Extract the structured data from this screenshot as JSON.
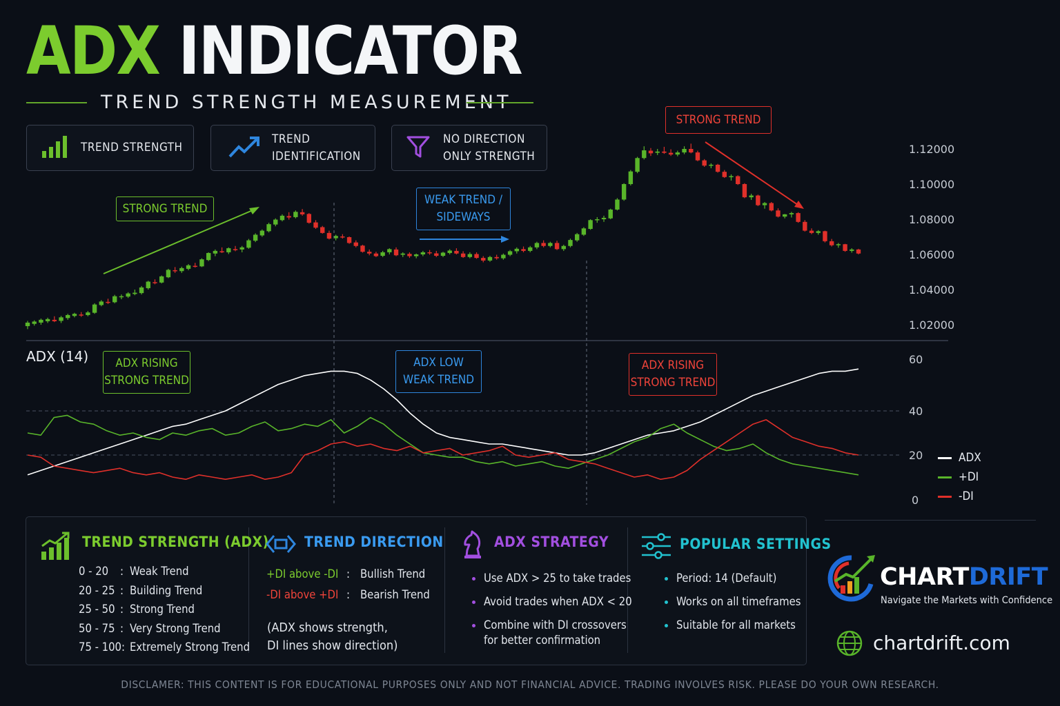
{
  "title": {
    "part1": "ADX",
    "part2": " INDICATOR"
  },
  "subtitle": "TREND STRENGTH MEASUREMENT",
  "features": [
    {
      "icon": "bar-chart-icon",
      "line1": "TREND STRENGTH",
      "line2": ""
    },
    {
      "icon": "trend-arrow-icon",
      "line1": "TREND",
      "line2": "IDENTIFICATION"
    },
    {
      "icon": "funnel-icon",
      "line1": "NO DIRECTION",
      "line2": "ONLY STRENGTH"
    }
  ],
  "annotations": {
    "price_strong_up": "STRONG TREND",
    "price_weak_l1": "WEAK TREND /",
    "price_weak_l2": "SIDEWAYS",
    "price_strong_down": "STRONG TREND",
    "adx_rising1_l1": "ADX RISING",
    "adx_rising1_l2": "STRONG TREND",
    "adx_low_l1": "ADX LOW",
    "adx_low_l2": "WEAK TREND",
    "adx_rising2_l1": "ADX RISING",
    "adx_rising2_l2": "STRONG TREND"
  },
  "colors": {
    "bull": "#59b52a",
    "bear": "#e0302a",
    "adx": "#ffffff",
    "plus_di": "#59b52a",
    "minus_di": "#e0302a",
    "accent_green": "#7ccc2e",
    "accent_blue": "#3a9bf0",
    "accent_purple": "#a24fe0",
    "accent_teal": "#22c2cf"
  },
  "chart_data": [
    {
      "type": "candlestick",
      "y_ticks": [
        "1.12000",
        "1.10000",
        "1.08000",
        "1.06000",
        "1.04000",
        "1.02000"
      ],
      "ylim": [
        1.015,
        1.125
      ],
      "ohlc": [
        [
          1.0192,
          1.0222,
          1.0175,
          1.0212
        ],
        [
          1.0205,
          1.0225,
          1.0195,
          1.0218
        ],
        [
          1.0212,
          1.0235,
          1.02,
          1.0228
        ],
        [
          1.022,
          1.024,
          1.021,
          1.0232
        ],
        [
          1.0228,
          1.0248,
          1.0215,
          1.022
        ],
        [
          1.0222,
          1.025,
          1.021,
          1.0242
        ],
        [
          1.0238,
          1.0262,
          1.0228,
          1.0255
        ],
        [
          1.025,
          1.0268,
          1.0242,
          1.0262
        ],
        [
          1.0258,
          1.0272,
          1.0245,
          1.0252
        ],
        [
          1.0255,
          1.0278,
          1.0248,
          1.027
        ],
        [
          1.0268,
          1.0322,
          1.0262,
          1.0315
        ],
        [
          1.0312,
          1.034,
          1.0305,
          1.0332
        ],
        [
          1.033,
          1.0348,
          1.0318,
          1.0326
        ],
        [
          1.0328,
          1.037,
          1.0322,
          1.0362
        ],
        [
          1.0358,
          1.0372,
          1.0345,
          1.0362
        ],
        [
          1.036,
          1.0385,
          1.0352,
          1.0378
        ],
        [
          1.0375,
          1.04,
          1.0368,
          1.0382
        ],
        [
          1.038,
          1.042,
          1.0372,
          1.0412
        ],
        [
          1.0408,
          1.045,
          1.04,
          1.0445
        ],
        [
          1.0442,
          1.0458,
          1.043,
          1.044
        ],
        [
          1.044,
          1.048,
          1.0435,
          1.0475
        ],
        [
          1.047,
          1.0518,
          1.0465,
          1.0512
        ],
        [
          1.051,
          1.0528,
          1.0495,
          1.0505
        ],
        [
          1.0505,
          1.053,
          1.0495,
          1.0522
        ],
        [
          1.0518,
          1.0545,
          1.051,
          1.0538
        ],
        [
          1.0535,
          1.0552,
          1.0525,
          1.053
        ],
        [
          1.0532,
          1.0578,
          1.0528,
          1.0572
        ],
        [
          1.0568,
          1.0612,
          1.0562,
          1.0608
        ],
        [
          1.0605,
          1.0628,
          1.059,
          1.062
        ],
        [
          1.0618,
          1.064,
          1.0608,
          1.0612
        ],
        [
          1.0612,
          1.064,
          1.0602,
          1.0635
        ],
        [
          1.063,
          1.0648,
          1.0618,
          1.0626
        ],
        [
          1.0628,
          1.0648,
          1.0612,
          1.064
        ],
        [
          1.0638,
          1.0688,
          1.0632,
          1.068
        ],
        [
          1.0678,
          1.072,
          1.067,
          1.0712
        ],
        [
          1.0708,
          1.0742,
          1.07,
          1.0735
        ],
        [
          1.0732,
          1.078,
          1.0725,
          1.0772
        ],
        [
          1.077,
          1.0805,
          1.076,
          1.0798
        ],
        [
          1.0795,
          1.0828,
          1.0788,
          1.082
        ],
        [
          1.0818,
          1.084,
          1.0798,
          1.081
        ],
        [
          1.0812,
          1.085,
          1.0805,
          1.0842
        ],
        [
          1.084,
          1.0858,
          1.082,
          1.0828
        ],
        [
          1.083,
          1.0835,
          1.0775,
          1.078
        ],
        [
          1.0782,
          1.0795,
          1.0745,
          1.0752
        ],
        [
          1.0755,
          1.0762,
          1.0718,
          1.0722
        ],
        [
          1.0722,
          1.0735,
          1.0685,
          1.069
        ],
        [
          1.0692,
          1.0712,
          1.068,
          1.0705
        ],
        [
          1.0702,
          1.0715,
          1.069,
          1.07
        ],
        [
          1.0698,
          1.0702,
          1.066,
          1.0665
        ],
        [
          1.0668,
          1.068,
          1.064,
          1.0648
        ],
        [
          1.065,
          1.0655,
          1.061,
          1.0615
        ],
        [
          1.0615,
          1.0628,
          1.0595,
          1.0605
        ],
        [
          1.0605,
          1.0615,
          1.0585,
          1.059
        ],
        [
          1.0592,
          1.062,
          1.0585,
          1.0612
        ],
        [
          1.0612,
          1.0635,
          1.06,
          1.063
        ],
        [
          1.0628,
          1.064,
          1.059,
          1.0595
        ],
        [
          1.0598,
          1.0612,
          1.0585,
          1.0605
        ],
        [
          1.0603,
          1.0612,
          1.058,
          1.059
        ],
        [
          1.059,
          1.0605,
          1.0578,
          1.06
        ],
        [
          1.06,
          1.062,
          1.059,
          1.0612
        ],
        [
          1.0612,
          1.0625,
          1.0598,
          1.0608
        ],
        [
          1.0606,
          1.062,
          1.0585,
          1.0592
        ],
        [
          1.0592,
          1.0615,
          1.0585,
          1.061
        ],
        [
          1.0608,
          1.063,
          1.06,
          1.0622
        ],
        [
          1.062,
          1.0635,
          1.06,
          1.0605
        ],
        [
          1.0605,
          1.0618,
          1.058,
          1.0585
        ],
        [
          1.0585,
          1.0612,
          1.0578,
          1.0602
        ],
        [
          1.0602,
          1.0612,
          1.0575,
          1.058
        ],
        [
          1.058,
          1.059,
          1.0555,
          1.0565
        ],
        [
          1.0565,
          1.0592,
          1.0558,
          1.0585
        ],
        [
          1.0585,
          1.0598,
          1.057,
          1.0578
        ],
        [
          1.0578,
          1.0605,
          1.057,
          1.0598
        ],
        [
          1.0598,
          1.0625,
          1.059,
          1.0618
        ],
        [
          1.0618,
          1.064,
          1.0605,
          1.0632
        ],
        [
          1.063,
          1.0645,
          1.0612,
          1.062
        ],
        [
          1.062,
          1.0648,
          1.0612,
          1.064
        ],
        [
          1.064,
          1.0672,
          1.063,
          1.0665
        ],
        [
          1.0665,
          1.068,
          1.064,
          1.0648
        ],
        [
          1.0648,
          1.0672,
          1.064,
          1.0665
        ],
        [
          1.0665,
          1.0678,
          1.0625,
          1.063
        ],
        [
          1.063,
          1.0655,
          1.062,
          1.0648
        ],
        [
          1.0648,
          1.069,
          1.064,
          1.0682
        ],
        [
          1.068,
          1.0722,
          1.0672,
          1.0715
        ],
        [
          1.0712,
          1.0755,
          1.0705,
          1.0748
        ],
        [
          1.0745,
          1.08,
          1.074,
          1.0795
        ],
        [
          1.0795,
          1.0812,
          1.078,
          1.08
        ],
        [
          1.08,
          1.082,
          1.0785,
          1.0808
        ],
        [
          1.0805,
          1.086,
          1.08,
          1.0855
        ],
        [
          1.0855,
          1.092,
          1.085,
          1.0912
        ],
        [
          1.0912,
          1.1005,
          1.0905,
          1.1
        ],
        [
          1.1,
          1.108,
          1.0992,
          1.1072
        ],
        [
          1.107,
          1.1155,
          1.1062,
          1.1148
        ],
        [
          1.1148,
          1.1215,
          1.114,
          1.1192
        ],
        [
          1.119,
          1.1205,
          1.116,
          1.1175
        ],
        [
          1.1178,
          1.12,
          1.1165,
          1.1185
        ],
        [
          1.1185,
          1.1212,
          1.1172,
          1.1178
        ],
        [
          1.1178,
          1.1198,
          1.116,
          1.1168
        ],
        [
          1.1168,
          1.119,
          1.1158,
          1.118
        ],
        [
          1.118,
          1.1215,
          1.117,
          1.12
        ],
        [
          1.12,
          1.123,
          1.1175,
          1.118
        ],
        [
          1.118,
          1.119,
          1.113,
          1.1135
        ],
        [
          1.1135,
          1.1142,
          1.1098,
          1.1105
        ],
        [
          1.1105,
          1.1118,
          1.109,
          1.111
        ],
        [
          1.111,
          1.1115,
          1.1065,
          1.107
        ],
        [
          1.107,
          1.108,
          1.1035,
          1.104
        ],
        [
          1.104,
          1.1055,
          1.102,
          1.1045
        ],
        [
          1.1045,
          1.105,
          1.0995,
          1.1
        ],
        [
          1.1,
          1.1005,
          1.092,
          1.0925
        ],
        [
          1.0925,
          1.0945,
          1.091,
          1.0935
        ],
        [
          1.0935,
          1.094,
          1.0875,
          1.088
        ],
        [
          1.088,
          1.0898,
          1.086,
          1.0892
        ],
        [
          1.0892,
          1.0898,
          1.0845,
          1.085
        ],
        [
          1.085,
          1.0862,
          1.081,
          1.0815
        ],
        [
          1.0815,
          1.083,
          1.0805,
          1.0828
        ],
        [
          1.0828,
          1.0842,
          1.081,
          1.0835
        ],
        [
          1.0835,
          1.084,
          1.078,
          1.0785
        ],
        [
          1.0785,
          1.0795,
          1.073,
          1.0735
        ],
        [
          1.0735,
          1.0748,
          1.0715,
          1.0722
        ],
        [
          1.0722,
          1.0738,
          1.0712,
          1.0732
        ],
        [
          1.0732,
          1.0735,
          1.0668,
          1.0675
        ],
        [
          1.0675,
          1.0688,
          1.0645,
          1.0652
        ],
        [
          1.0652,
          1.0665,
          1.0638,
          1.0658
        ],
        [
          1.0658,
          1.066,
          1.0615,
          1.062
        ],
        [
          1.062,
          1.0635,
          1.061,
          1.0628
        ],
        [
          1.0628,
          1.0632,
          1.06,
          1.0605
        ]
      ]
    },
    {
      "type": "line",
      "title": "ADX (14)",
      "y_ticks": [
        60,
        40,
        20,
        0
      ],
      "ylim": [
        0,
        64
      ],
      "series": [
        {
          "name": "ADX",
          "color": "#ffffff",
          "values": [
            11,
            13,
            15,
            17,
            19,
            21,
            23,
            25,
            27,
            29,
            31,
            33,
            34,
            36,
            38,
            40,
            43,
            46,
            49,
            52,
            54,
            56,
            57,
            58,
            58,
            57,
            54,
            50,
            45,
            39,
            34,
            30,
            28,
            27,
            26,
            25,
            25,
            24,
            23,
            22,
            21,
            20,
            20,
            21,
            23,
            25,
            27,
            29,
            30,
            31,
            33,
            35,
            38,
            41,
            44,
            47,
            49,
            51,
            53,
            55,
            57,
            58,
            58,
            59
          ]
        },
        {
          "name": "+DI",
          "color": "#59b52a",
          "values": [
            30,
            29,
            37,
            38,
            35,
            34,
            31,
            29,
            30,
            28,
            27,
            30,
            29,
            31,
            32,
            29,
            30,
            33,
            35,
            31,
            32,
            34,
            33,
            36,
            30,
            33,
            37,
            34,
            29,
            25,
            21,
            20,
            19,
            19,
            17,
            16,
            17,
            15,
            16,
            17,
            15,
            14,
            16,
            18,
            20,
            23,
            26,
            28,
            32,
            34,
            30,
            27,
            24,
            22,
            23,
            25,
            21,
            18,
            16,
            15,
            14,
            13,
            12,
            11
          ]
        },
        {
          "name": "-DI",
          "color": "#e0302a",
          "values": [
            20,
            19,
            15,
            14,
            13,
            12,
            13,
            14,
            12,
            11,
            12,
            10,
            9,
            11,
            10,
            9,
            10,
            11,
            9,
            10,
            12,
            20,
            22,
            25,
            26,
            24,
            25,
            23,
            22,
            24,
            21,
            22,
            23,
            20,
            21,
            22,
            24,
            20,
            19,
            20,
            21,
            18,
            17,
            16,
            14,
            12,
            10,
            11,
            9,
            10,
            13,
            18,
            22,
            26,
            30,
            34,
            36,
            32,
            28,
            26,
            24,
            23,
            21,
            20
          ]
        }
      ]
    }
  ],
  "legend": {
    "adx": "ADX",
    "plus_di": "+DI",
    "minus_di": "-DI"
  },
  "sections": {
    "strength": {
      "title": "TREND STRENGTH (ADX)",
      "rows": [
        {
          "range": "0  -  20",
          "sep": ":",
          "label": "Weak Trend"
        },
        {
          "range": "20  -  25",
          "sep": ":",
          "label": "Building Trend"
        },
        {
          "range": "25  -  50",
          "sep": ":",
          "label": "Strong Trend"
        },
        {
          "range": "50  -  75",
          "sep": ":",
          "label": "Very Strong Trend"
        },
        {
          "range": "75  -  100:",
          "sep": "",
          "label": "Extremely Strong Trend"
        }
      ]
    },
    "direction": {
      "title": "TREND DIRECTION",
      "row1_key": "+DI above -DI",
      "row1_sep": ":",
      "row1_val": "Bullish Trend",
      "row2_key": "-DI above +DI",
      "row2_sep": ":",
      "row2_val": "Bearish Trend",
      "note1": "(ADX shows strength,",
      "note2": "DI lines show direction)"
    },
    "strategy": {
      "title": "ADX STRATEGY",
      "items": [
        "Use ADX > 25 to take trades",
        "Avoid trades when ADX < 20",
        "Combine with DI crossovers"
      ],
      "item3_cont": "for better confirmation"
    },
    "settings": {
      "title": "POPULAR SETTINGS",
      "items": [
        "Period: 14 (Default)",
        "Works on all timeframes",
        "Suitable for all markets"
      ]
    }
  },
  "brand": {
    "name_part1": "CHART",
    "name_part2": "DRIFT",
    "tagline": "Navigate the Markets with Confidence",
    "website": "chartdrift.com"
  },
  "disclaimer": "DISCLAMER: THIS CONTENT IS FOR EDUCATIONAL PURPOSES ONLY AND NOT FINANCIAL ADVICE. TRADING INVOLVES RISK. PLEASE DO YOUR OWN RESEARCH."
}
